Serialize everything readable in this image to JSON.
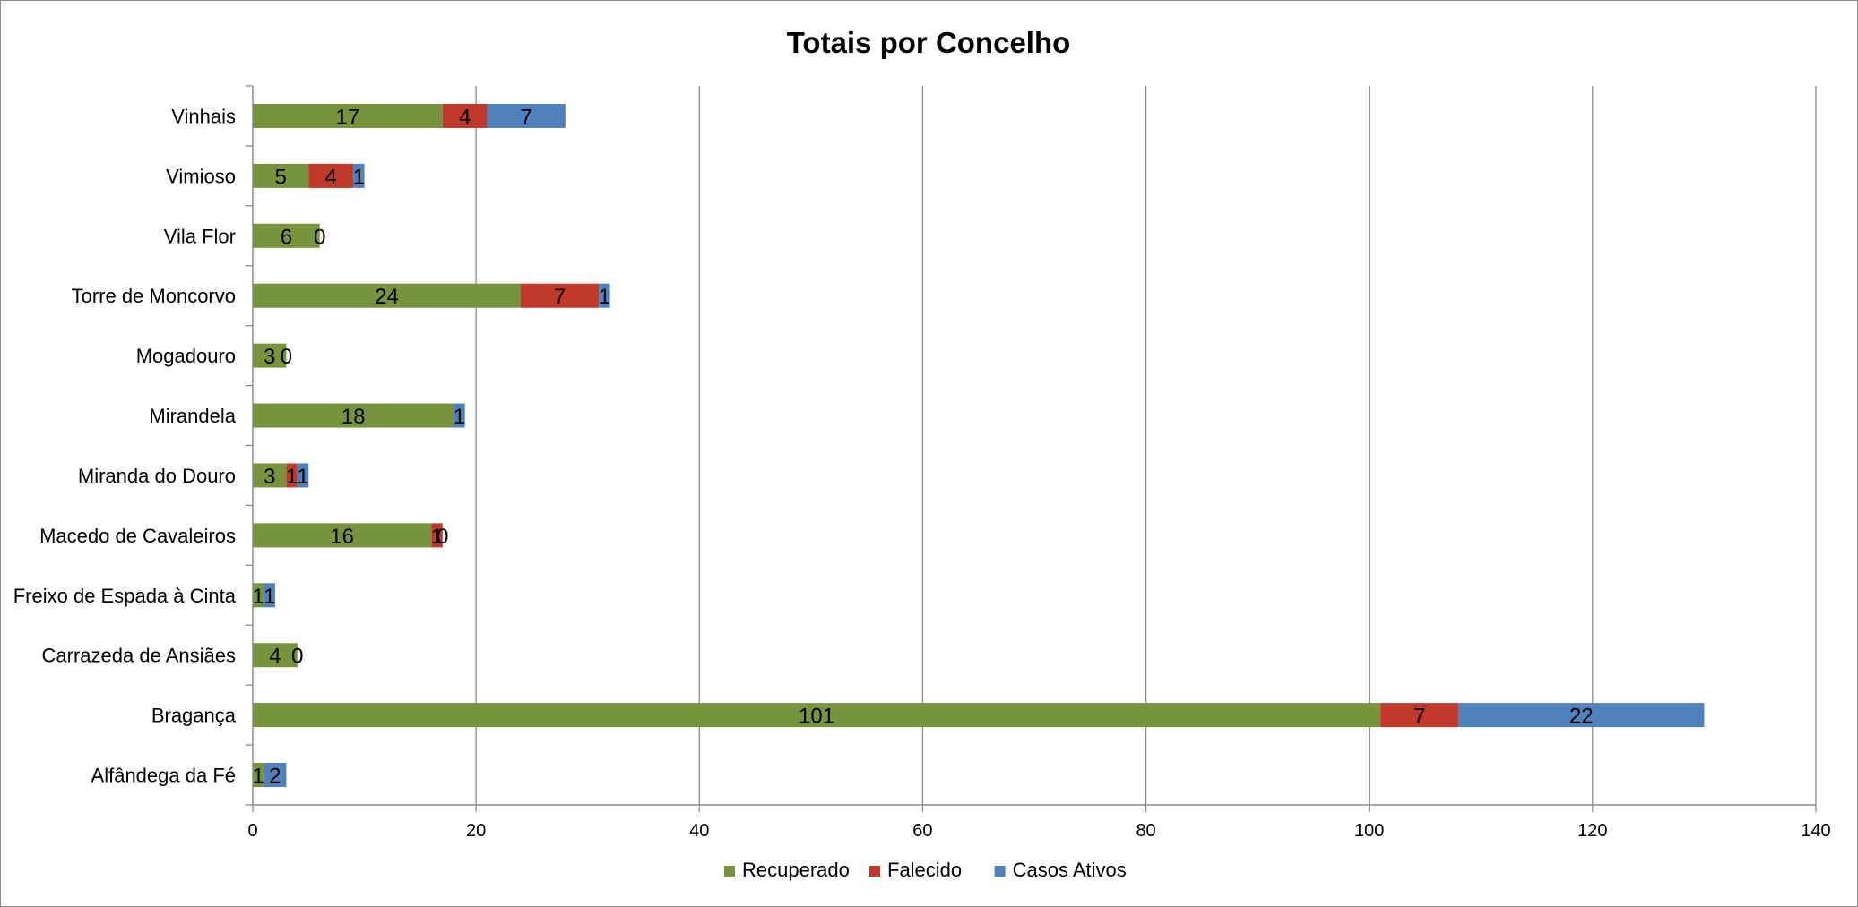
{
  "chart_data": {
    "type": "bar",
    "orientation": "horizontal",
    "stacked": true,
    "title": "Totais por Concelho",
    "xlabel": "",
    "ylabel": "",
    "xlim": [
      0,
      140
    ],
    "x_ticks": [
      0,
      20,
      40,
      60,
      80,
      100,
      120,
      140
    ],
    "grid": true,
    "legend_position": "bottom",
    "categories": [
      "Alfândega da Fé",
      "Bragança",
      "Carrazeda de Ansiães",
      "Freixo de Espada à Cinta",
      "Macedo de Cavaleiros",
      "Miranda do Douro",
      "Mirandela",
      "Mogadouro",
      "Torre de Moncorvo",
      "Vila Flor",
      "Vimioso",
      "Vinhais"
    ],
    "series": [
      {
        "name": "Recuperado",
        "color": "#77933c",
        "values": [
          1,
          101,
          4,
          1,
          16,
          3,
          18,
          3,
          24,
          6,
          5,
          17
        ]
      },
      {
        "name": "Falecido",
        "color": "#c0392b",
        "values": [
          null,
          7,
          0,
          null,
          1,
          1,
          null,
          0,
          7,
          0,
          4,
          4
        ]
      },
      {
        "name": "Casos Ativos",
        "color": "#4f81bd",
        "values": [
          2,
          22,
          null,
          1,
          0,
          1,
          1,
          null,
          1,
          null,
          1,
          7
        ]
      }
    ]
  }
}
